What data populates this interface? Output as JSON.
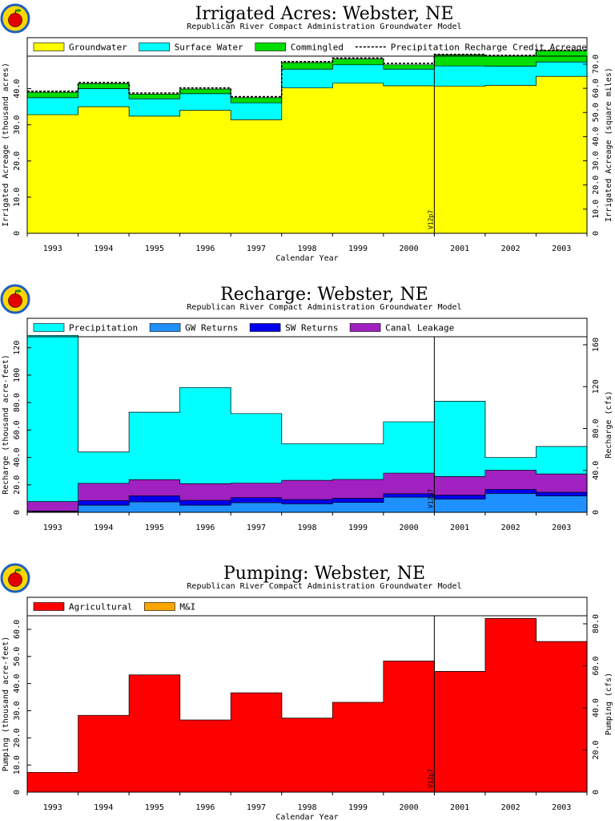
{
  "chart_data": [
    {
      "type": "area",
      "title": "Irrigated Acres: Webster, NE",
      "subtitle": "Republican River Compact Administration Groundwater Model",
      "xlabel": "Calendar Year",
      "ylabel": "Irrigated Acreage (thousand acres)",
      "y2label": "Irrigated Acreage (square miles)",
      "ylim": [
        0,
        49
      ],
      "yticks": [
        "0",
        "10.0",
        "20.0",
        "30.0",
        "40.0"
      ],
      "y2ticks": [
        "0",
        "10.0",
        "20.0",
        "30.0",
        "40.0",
        "50.0",
        "60.0",
        "70.0"
      ],
      "categories": [
        "1993",
        "1994",
        "1995",
        "1996",
        "1997",
        "1998",
        "1999",
        "2000",
        "2001",
        "2002",
        "2003"
      ],
      "stacked": true,
      "step": true,
      "series": [
        {
          "name": "Groundwater",
          "color": "#ffff00",
          "values": [
            32.8,
            35.0,
            32.4,
            34.0,
            31.4,
            40.2,
            41.5,
            40.8,
            40.7,
            40.9,
            43.4
          ]
        },
        {
          "name": "Surface Water",
          "color": "#00ffff",
          "values": [
            4.7,
            5.0,
            4.8,
            4.6,
            4.7,
            5.2,
            5.1,
            4.6,
            5.6,
            5.3,
            4.0
          ]
        },
        {
          "name": "Commingled",
          "color": "#00dd00",
          "values": [
            1.5,
            1.4,
            1.3,
            1.3,
            1.4,
            1.8,
            1.6,
            1.2,
            3.0,
            2.8,
            3.1
          ]
        }
      ],
      "line_series": {
        "name": "Precipitation Recharge Credit Acreage",
        "values": [
          39.3,
          41.7,
          38.8,
          40.2,
          37.8,
          47.5,
          48.5,
          47.0,
          49.5,
          49.2,
          50.6
        ]
      },
      "vline": {
        "after": "2000",
        "label": "V12p7"
      }
    },
    {
      "type": "area",
      "title": "Recharge: Webster, NE",
      "subtitle": "Republican River Compact Administration Groundwater Model",
      "xlabel": "",
      "ylabel": "Recharge (thousand acre-feet)",
      "y2label": "Recharge (cfs)",
      "ylim": [
        0,
        128
      ],
      "yticks": [
        "0",
        "20.0",
        "40.0",
        "60.0",
        "80.0",
        "100",
        "120"
      ],
      "y2ticks": [
        "0",
        "40.0",
        "80.0",
        "120",
        "160"
      ],
      "categories": [
        "1993",
        "1994",
        "1995",
        "1996",
        "1997",
        "1998",
        "1999",
        "2000",
        "2001",
        "2002",
        "2003"
      ],
      "stacked": true,
      "step": true,
      "series": [
        {
          "name": "GW Returns",
          "color": "#1e90ff",
          "values": [
            0.5,
            5.2,
            7.6,
            5.2,
            7.0,
            6.2,
            7.2,
            11.0,
            9.6,
            13.7,
            12.0
          ]
        },
        {
          "name": "SW Returns",
          "color": "#0000ee",
          "values": [
            0.5,
            3.4,
            4.4,
            3.5,
            3.7,
            3.1,
            3.1,
            2.5,
            2.9,
            3.0,
            2.6
          ]
        },
        {
          "name": "Canal Leakage",
          "color": "#a020c0",
          "values": [
            6.8,
            12.5,
            11.8,
            12.2,
            10.6,
            14.0,
            13.7,
            15.1,
            13.6,
            14.0,
            13.4
          ]
        },
        {
          "name": "Precipitation",
          "color": "#00ffff",
          "values": [
            121.2,
            22.9,
            49.2,
            70.1,
            50.7,
            26.7,
            26.0,
            37.4,
            54.9,
            9.3,
            20.0
          ]
        }
      ],
      "legend_order": [
        "Precipitation",
        "GW Returns",
        "SW Returns",
        "Canal Leakage"
      ],
      "vline": {
        "after": "2000",
        "label": "V12p7"
      }
    },
    {
      "type": "area",
      "title": "Pumping: Webster, NE",
      "subtitle": "Republican River Compact Administration Groundwater Model",
      "xlabel": "Calendar Year",
      "ylabel": "Pumping (thousand acre-feet)",
      "y2label": "Pumping (cfs)",
      "ylim": [
        0,
        65
      ],
      "yticks": [
        "0",
        "10.0",
        "20.0",
        "30.0",
        "40.0",
        "50.0",
        "60.0"
      ],
      "y2ticks": [
        "0",
        "20.0",
        "40.0",
        "60.0",
        "80.0"
      ],
      "categories": [
        "1993",
        "1994",
        "1995",
        "1996",
        "1997",
        "1998",
        "1999",
        "2000",
        "2001",
        "2002",
        "2003"
      ],
      "stacked": true,
      "step": true,
      "series": [
        {
          "name": "Agricultural",
          "color": "#ff0000",
          "values": [
            7.3,
            28.3,
            43.2,
            26.6,
            36.6,
            27.3,
            33.1,
            48.3,
            44.5,
            64.0,
            55.5
          ]
        },
        {
          "name": "M&I",
          "color": "#ffa500",
          "values": [
            0,
            0,
            0,
            0,
            0,
            0,
            0,
            0,
            0,
            0,
            0
          ]
        }
      ],
      "vline": {
        "after": "2000",
        "label": "V12p7"
      }
    }
  ]
}
